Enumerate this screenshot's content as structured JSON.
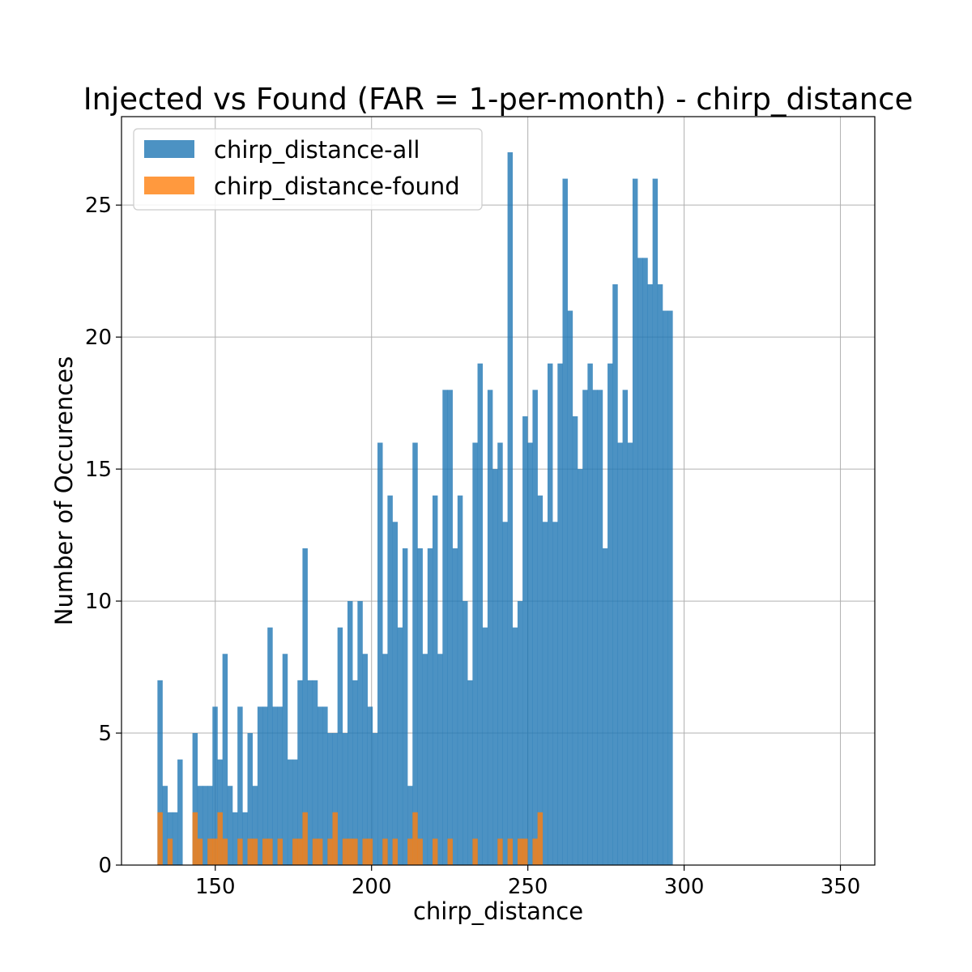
{
  "chart_data": {
    "type": "histogram",
    "title": "Injected vs Found (FAR = 1-per-month) - chirp_distance",
    "xlabel": "chirp_distance",
    "ylabel": "Number of Occurences",
    "xlim": [
      120,
      361
    ],
    "ylim": [
      0,
      28.35
    ],
    "xticks": [
      150,
      200,
      250,
      300,
      350
    ],
    "yticks": [
      0,
      5,
      10,
      15,
      20,
      25
    ],
    "grid": true,
    "legend_position": "top-left",
    "bin_start": 131.5,
    "bin_width": 1.6,
    "series": [
      {
        "name": "chirp_distance-all",
        "color": "#1f77b4",
        "counts": [
          7,
          3,
          2,
          2,
          4,
          0,
          0,
          5,
          3,
          3,
          3,
          6,
          4,
          8,
          3,
          2,
          6,
          2,
          5,
          3,
          6,
          6,
          9,
          6,
          6,
          8,
          4,
          4,
          7,
          12,
          7,
          7,
          6,
          6,
          5,
          5,
          9,
          5,
          10,
          7,
          10,
          8,
          6,
          5,
          16,
          8,
          14,
          13,
          9,
          12,
          3,
          16,
          12,
          8,
          12,
          14,
          8,
          18,
          18,
          12,
          14,
          10,
          7,
          16,
          19,
          9,
          18,
          15,
          16,
          13,
          27,
          9,
          10,
          17,
          16,
          18,
          14,
          13,
          19,
          13,
          19,
          26,
          21,
          17,
          15,
          18,
          19,
          18,
          18,
          12,
          19,
          22,
          16,
          18,
          16,
          26,
          23,
          23,
          22,
          26,
          22,
          21,
          21
        ]
      },
      {
        "name": "chirp_distance-found",
        "color": "#ff7f0e",
        "counts": [
          2,
          0,
          1,
          0,
          0,
          0,
          0,
          2,
          1,
          0,
          1,
          1,
          2,
          1,
          0,
          0,
          1,
          0,
          1,
          1,
          0,
          1,
          1,
          0,
          1,
          0,
          0,
          1,
          1,
          2,
          0,
          1,
          1,
          0,
          1,
          2,
          0,
          1,
          1,
          1,
          0,
          1,
          1,
          0,
          0,
          1,
          0,
          1,
          0,
          0,
          1,
          2,
          1,
          0,
          0,
          1,
          0,
          0,
          1,
          0,
          0,
          0,
          0,
          1,
          0,
          0,
          0,
          0,
          1,
          0,
          1,
          0,
          1,
          1,
          0,
          1,
          2,
          0,
          0,
          0,
          0,
          0,
          0,
          0,
          0,
          0,
          0,
          0,
          0,
          0,
          0,
          0,
          0,
          0,
          0,
          0,
          0,
          0,
          0,
          0,
          0,
          0,
          0
        ]
      }
    ]
  }
}
